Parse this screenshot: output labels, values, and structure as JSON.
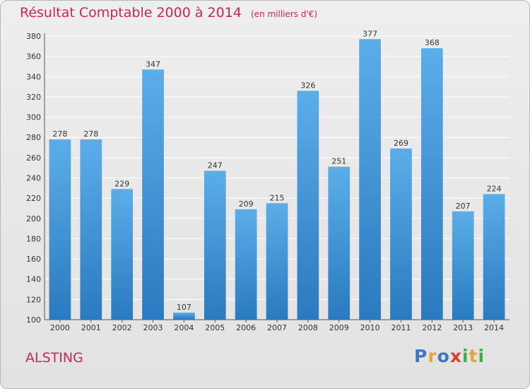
{
  "header": {
    "title": "Résultat Comptable 2000 à 2014",
    "subtitle": "(en milliers d'€)"
  },
  "footer": {
    "town": "ALSTING",
    "logo_parts": [
      {
        "text": "P",
        "color": "#3b78c4"
      },
      {
        "text": "r",
        "color": "#e8a33c"
      },
      {
        "text": "o",
        "color": "#3b78c4"
      },
      {
        "text": "x",
        "color": "#e23d28"
      },
      {
        "text": "i",
        "color": "#3bb04a"
      },
      {
        "text": "t",
        "color": "#e8a33c"
      },
      {
        "text": "i",
        "color": "#3bb04a"
      }
    ]
  },
  "colors": {
    "title": "#c8275a",
    "bar_top": "#5aaee8",
    "bar_bottom": "#2a7abf",
    "grid": "#ffffff",
    "background": "#e6e6e6"
  },
  "chart_data": {
    "type": "bar",
    "title": "Résultat Comptable 2000 à 2014",
    "subtitle": "(en milliers d'€)",
    "xlabel": "",
    "ylabel": "",
    "categories": [
      "2000",
      "2001",
      "2002",
      "2003",
      "2004",
      "2005",
      "2006",
      "2007",
      "2008",
      "2009",
      "2010",
      "2011",
      "2012",
      "2013",
      "2014"
    ],
    "values": [
      278,
      278,
      229,
      347,
      107,
      247,
      209,
      215,
      326,
      251,
      377,
      269,
      368,
      207,
      224
    ],
    "ylim": [
      100,
      380
    ],
    "yticks": [
      100,
      120,
      140,
      160,
      180,
      200,
      220,
      240,
      260,
      280,
      300,
      320,
      340,
      360,
      380
    ],
    "grid": true,
    "legend": "none"
  }
}
